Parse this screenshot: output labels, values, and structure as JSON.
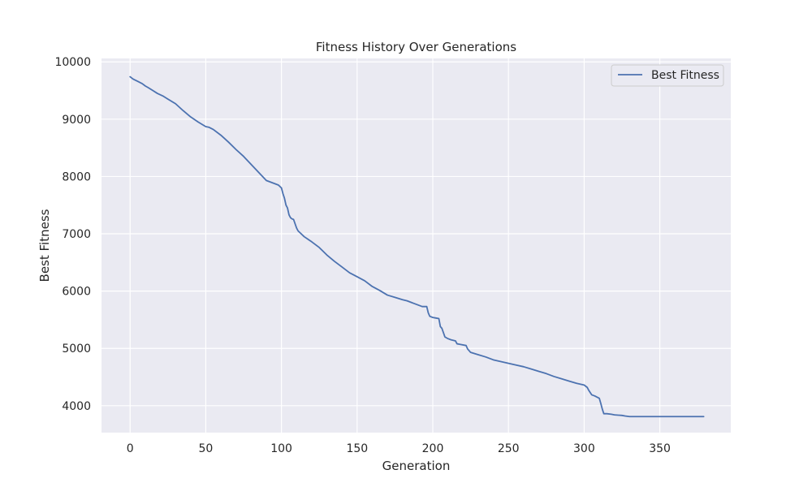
{
  "chart_data": {
    "type": "line",
    "title": "Fitness History Over Generations",
    "xlabel": "Generation",
    "ylabel": "Best Fitness",
    "xlim": [
      -18.9,
      396.9
    ],
    "ylim": [
      3530,
      10060
    ],
    "xticks": [
      0,
      50,
      100,
      150,
      200,
      250,
      300,
      350
    ],
    "xtick_labels": [
      "0",
      "50",
      "100",
      "150",
      "200",
      "250",
      "300",
      "350"
    ],
    "yticks": [
      4000,
      5000,
      6000,
      7000,
      8000,
      9000,
      10000
    ],
    "ytick_labels": [
      "4000",
      "5000",
      "6000",
      "7000",
      "8000",
      "9000",
      "10000"
    ],
    "grid": true,
    "legend_position": "top-right",
    "colors": {
      "background": "#eaeaf2",
      "grid": "#ffffff",
      "line": "#4c72b0",
      "text": "#262626"
    },
    "series": [
      {
        "name": "Best Fitness",
        "x": [
          0,
          2,
          5,
          8,
          10,
          12,
          15,
          18,
          22,
          25,
          30,
          35,
          40,
          45,
          50,
          52,
          55,
          60,
          65,
          70,
          75,
          80,
          85,
          90,
          95,
          98,
          100,
          101,
          102,
          103,
          104,
          105,
          106,
          107,
          108,
          110,
          111,
          113,
          115,
          120,
          125,
          130,
          135,
          140,
          145,
          150,
          155,
          160,
          165,
          170,
          175,
          180,
          183,
          186,
          190,
          193,
          196,
          197,
          198,
          200,
          202,
          204,
          205,
          206,
          208,
          210,
          212,
          215,
          216,
          218,
          222,
          223,
          225,
          230,
          235,
          240,
          245,
          250,
          255,
          260,
          265,
          270,
          275,
          280,
          285,
          290,
          295,
          300,
          302,
          303,
          304,
          305,
          307,
          310,
          311,
          312,
          313,
          315,
          318,
          320,
          325,
          327,
          330,
          335,
          340,
          350,
          360,
          370,
          379
        ],
        "values": [
          9740,
          9700,
          9660,
          9620,
          9580,
          9550,
          9500,
          9450,
          9400,
          9350,
          9270,
          9150,
          9040,
          8950,
          8870,
          8860,
          8820,
          8720,
          8600,
          8470,
          8350,
          8210,
          8070,
          7930,
          7880,
          7850,
          7800,
          7700,
          7620,
          7500,
          7450,
          7330,
          7280,
          7260,
          7250,
          7100,
          7050,
          7000,
          6950,
          6860,
          6760,
          6630,
          6520,
          6420,
          6320,
          6250,
          6180,
          6080,
          6010,
          5930,
          5890,
          5850,
          5830,
          5800,
          5760,
          5730,
          5730,
          5620,
          5560,
          5540,
          5530,
          5520,
          5380,
          5350,
          5200,
          5170,
          5150,
          5130,
          5080,
          5070,
          5050,
          4990,
          4930,
          4890,
          4850,
          4800,
          4770,
          4740,
          4710,
          4680,
          4640,
          4600,
          4560,
          4510,
          4470,
          4430,
          4390,
          4360,
          4320,
          4270,
          4230,
          4190,
          4170,
          4130,
          4040,
          3940,
          3860,
          3860,
          3850,
          3840,
          3830,
          3820,
          3810,
          3810,
          3810,
          3810,
          3810,
          3810,
          3810
        ]
      }
    ]
  }
}
